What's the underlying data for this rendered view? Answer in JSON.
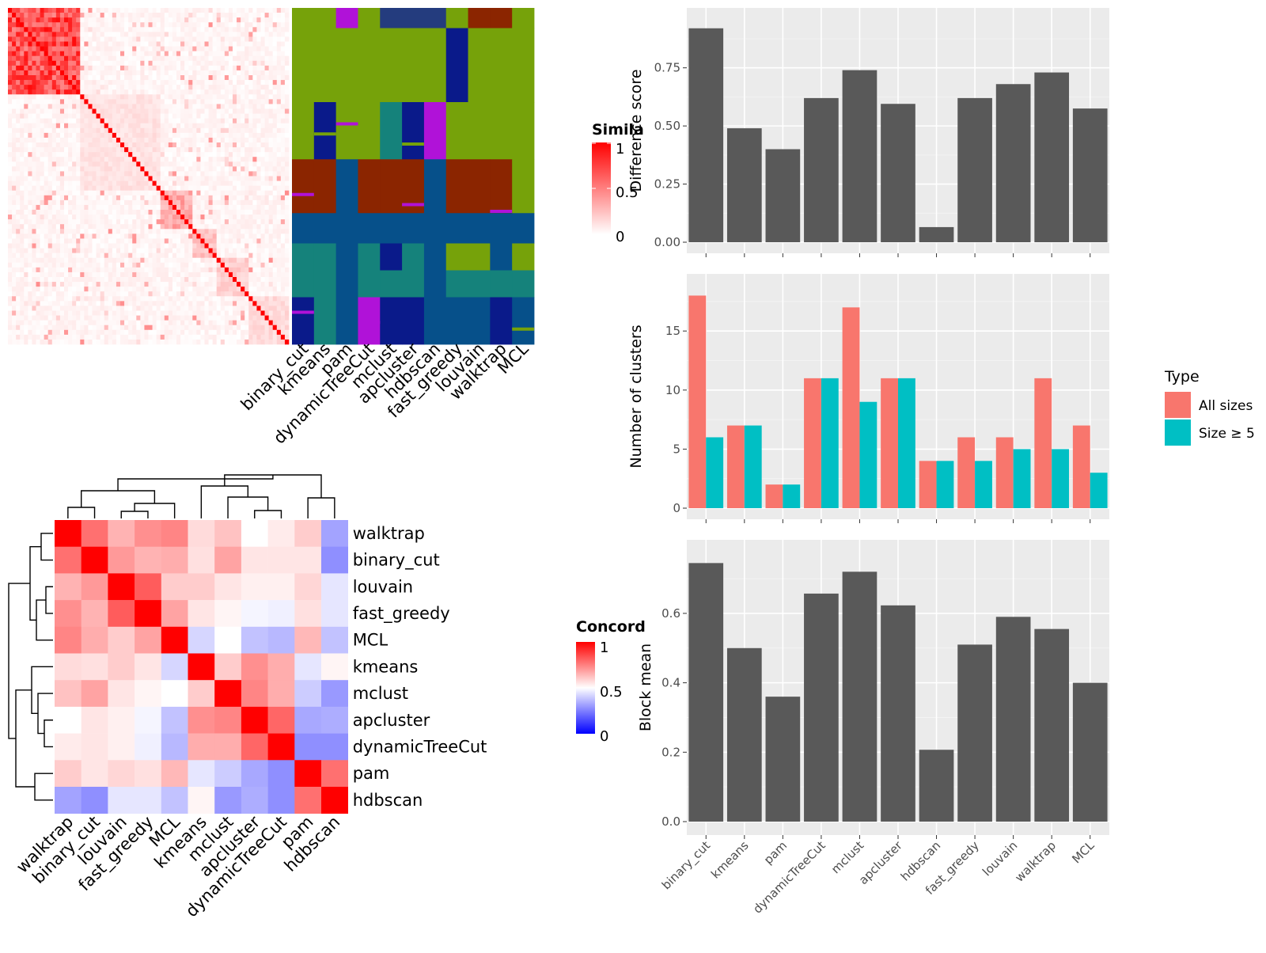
{
  "methods": [
    "binary_cut",
    "kmeans",
    "pam",
    "dynamicTreeCut",
    "mclust",
    "apcluster",
    "hdbscan",
    "fast_greedy",
    "louvain",
    "walktrap",
    "MCL"
  ],
  "similarity_legend": {
    "title": "Simila",
    "ticks": [
      "1",
      "0.5",
      "0"
    ]
  },
  "concordance_legend": {
    "title": "Concord",
    "ticks": [
      "1",
      "0.5",
      "0"
    ]
  },
  "concordance_order": [
    "walktrap",
    "binary_cut",
    "louvain",
    "fast_greedy",
    "MCL",
    "kmeans",
    "mclust",
    "apcluster",
    "dynamicTreeCut",
    "pam",
    "hdbscan"
  ],
  "concordance_matrix": [
    [
      1.0,
      0.78,
      0.65,
      0.72,
      0.74,
      0.57,
      0.62,
      0.5,
      0.54,
      0.6,
      0.32
    ],
    [
      0.78,
      1.0,
      0.7,
      0.65,
      0.66,
      0.56,
      0.68,
      0.55,
      0.55,
      0.55,
      0.28
    ],
    [
      0.65,
      0.7,
      1.0,
      0.82,
      0.6,
      0.6,
      0.55,
      0.53,
      0.53,
      0.58,
      0.45
    ],
    [
      0.72,
      0.65,
      0.82,
      1.0,
      0.68,
      0.55,
      0.52,
      0.48,
      0.47,
      0.56,
      0.45
    ],
    [
      0.74,
      0.66,
      0.6,
      0.68,
      1.0,
      0.42,
      0.5,
      0.38,
      0.36,
      0.64,
      0.38
    ],
    [
      0.57,
      0.56,
      0.6,
      0.55,
      0.42,
      1.0,
      0.6,
      0.72,
      0.66,
      0.45,
      0.52
    ],
    [
      0.62,
      0.68,
      0.55,
      0.52,
      0.5,
      0.6,
      1.0,
      0.74,
      0.66,
      0.4,
      0.3
    ],
    [
      0.5,
      0.55,
      0.53,
      0.48,
      0.38,
      0.72,
      0.74,
      1.0,
      0.8,
      0.33,
      0.34
    ],
    [
      0.54,
      0.55,
      0.53,
      0.47,
      0.36,
      0.66,
      0.66,
      0.8,
      1.0,
      0.28,
      0.28
    ],
    [
      0.6,
      0.55,
      0.58,
      0.56,
      0.64,
      0.45,
      0.4,
      0.33,
      0.28,
      1.0,
      0.78
    ],
    [
      0.32,
      0.28,
      0.45,
      0.45,
      0.38,
      0.52,
      0.3,
      0.34,
      0.28,
      0.78,
      1.0
    ]
  ],
  "chart_data": [
    {
      "type": "bar",
      "categories": [
        "binary_cut",
        "kmeans",
        "pam",
        "dynamicTreeCut",
        "mclust",
        "apcluster",
        "hdbscan",
        "fast_greedy",
        "louvain",
        "walktrap",
        "MCL"
      ],
      "values": [
        0.92,
        0.49,
        0.4,
        0.62,
        0.74,
        0.595,
        0.065,
        0.62,
        0.68,
        0.73,
        0.575
      ],
      "ylabel": "Difference score",
      "ylim": [
        0,
        0.96
      ],
      "yticks": [
        "0.00",
        "0.25",
        "0.50",
        "0.75"
      ],
      "grid": true
    },
    {
      "type": "bar",
      "categories": [
        "binary_cut",
        "kmeans",
        "pam",
        "dynamicTreeCut",
        "mclust",
        "apcluster",
        "hdbscan",
        "fast_greedy",
        "louvain",
        "walktrap",
        "MCL"
      ],
      "series": [
        {
          "name": "All sizes",
          "values": [
            18,
            7,
            2,
            11,
            17,
            11,
            4,
            6,
            6,
            11,
            7
          ]
        },
        {
          "name": "Size ≥ 5",
          "values": [
            6,
            7,
            2,
            11,
            9,
            11,
            4,
            4,
            5,
            5,
            3
          ]
        }
      ],
      "ylabel": "Number of clusters",
      "ylim": [
        0,
        18.9
      ],
      "yticks": [
        "0",
        "5",
        "10",
        "15"
      ],
      "legend_title": "Type",
      "legend_position": "right",
      "grid": true
    },
    {
      "type": "bar",
      "categories": [
        "binary_cut",
        "kmeans",
        "pam",
        "dynamicTreeCut",
        "mclust",
        "apcluster",
        "hdbscan",
        "fast_greedy",
        "louvain",
        "walktrap",
        "MCL"
      ],
      "values": [
        0.745,
        0.5,
        0.36,
        0.657,
        0.72,
        0.623,
        0.207,
        0.51,
        0.59,
        0.555,
        0.4
      ],
      "ylabel": "Block mean",
      "ylim": [
        0,
        0.78
      ],
      "yticks": [
        "0.0",
        "0.2",
        "0.4",
        "0.6"
      ],
      "grid": true
    }
  ],
  "colors": {
    "bar": "#595959",
    "panel": "#ebebeb",
    "grid": "#ffffff",
    "all_sizes": "#F8766D",
    "size5": "#00BFC4",
    "hi": "#FF0000",
    "mid": "#FFFFFF",
    "lo": "#0000FF"
  }
}
